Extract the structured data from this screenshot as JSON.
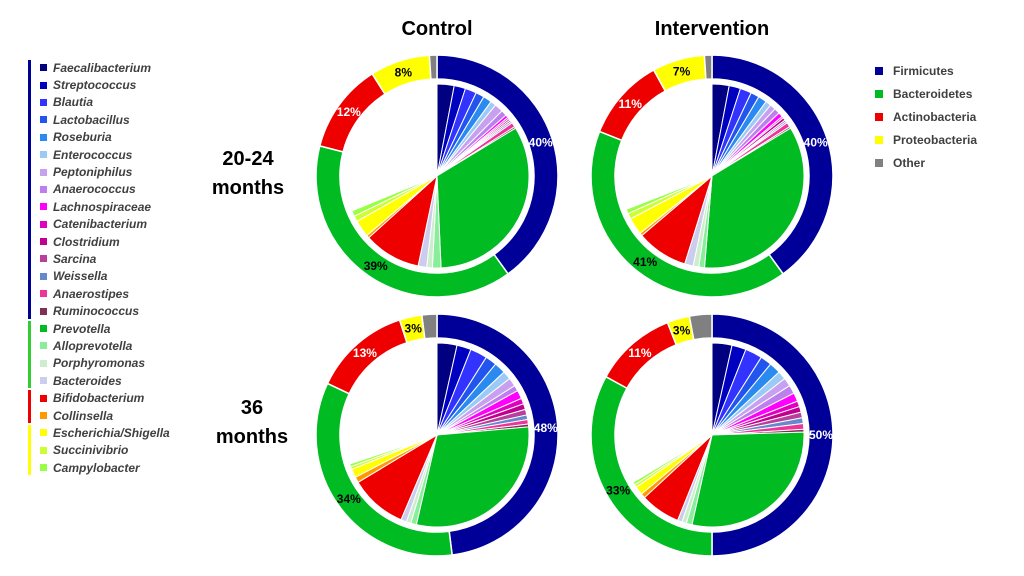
{
  "columns": [
    "Control",
    "Intervention"
  ],
  "rows": [
    {
      "line1": "20-24",
      "line2": "months"
    },
    {
      "line1": "36",
      "line2": "months"
    }
  ],
  "phylum_legend": [
    {
      "label": "Firmicutes",
      "color": "#000099"
    },
    {
      "label": "Bacteroidetes",
      "color": "#00bb22"
    },
    {
      "label": "Actinobacteria",
      "color": "#ee0000"
    },
    {
      "label": "Proteobacteria",
      "color": "#ffff00"
    },
    {
      "label": "Other",
      "color": "#808080"
    }
  ],
  "genus_legend": [
    {
      "phylum": "Firmicutes",
      "bar_color": "#000099",
      "items": [
        {
          "label": "Faecalibacterium",
          "color": "#000080"
        },
        {
          "label": "Streptococcus",
          "color": "#0000c0"
        },
        {
          "label": "Blautia",
          "color": "#3333ff"
        },
        {
          "label": "Lactobacillus",
          "color": "#2255ee"
        },
        {
          "label": "Roseburia",
          "color": "#2a8af0"
        },
        {
          "label": "Enterococcus",
          "color": "#9ccaf5"
        },
        {
          "label": "Peptoniphilus",
          "color": "#c8a0f0"
        },
        {
          "label": "Anaerococcus",
          "color": "#bb80ee"
        },
        {
          "label": "Lachnospiraceae",
          "color": "#ff00ff"
        },
        {
          "label": "Catenibacterium",
          "color": "#e000c0"
        },
        {
          "label": "Clostridium",
          "color": "#c00090"
        },
        {
          "label": "Sarcina",
          "color": "#b8409a"
        },
        {
          "label": "Weissella",
          "color": "#6688cc"
        },
        {
          "label": "Anaerostipes",
          "color": "#ee3399"
        },
        {
          "label": "Ruminococcus",
          "color": "#803050"
        }
      ]
    },
    {
      "phylum": "Bacteroidetes",
      "bar_color": "#33cc33",
      "items": [
        {
          "label": "Prevotella",
          "color": "#00bb22"
        },
        {
          "label": "Alloprevotella",
          "color": "#88ee99"
        },
        {
          "label": "Porphyromonas",
          "color": "#cceecc"
        },
        {
          "label": "Bacteroides",
          "color": "#ccccee"
        }
      ]
    },
    {
      "phylum": "Actinobacteria",
      "bar_color": "#ee0000",
      "items": [
        {
          "label": "Bifidobacterium",
          "color": "#ee0000"
        },
        {
          "label": "Collinsella",
          "color": "#ff9900"
        }
      ]
    },
    {
      "phylum": "Proteobacteria",
      "bar_color": "#ffff00",
      "items": [
        {
          "label": "Escherichia/Shigella",
          "color": "#ffff00"
        },
        {
          "label": "Succinivibrio",
          "color": "#ccff33"
        },
        {
          "label": "Campylobacter",
          "color": "#99ff44"
        }
      ]
    }
  ],
  "chart_data": [
    {
      "type": "pie",
      "column": "Control",
      "row": "20-24 months",
      "phyla": [
        {
          "name": "Firmicutes",
          "value": 40,
          "label": "40%"
        },
        {
          "name": "Bacteroidetes",
          "value": 39,
          "label": "39%"
        },
        {
          "name": "Actinobacteria",
          "value": 12,
          "label": "12%"
        },
        {
          "name": "Proteobacteria",
          "value": 8,
          "label": "8%"
        },
        {
          "name": "Other",
          "value": 1,
          "label": ""
        }
      ],
      "genera": [
        {
          "name": "Faecalibacterium",
          "value": 3.0
        },
        {
          "name": "Streptococcus",
          "value": 2.0
        },
        {
          "name": "Blautia",
          "value": 2.0
        },
        {
          "name": "Lactobacillus",
          "value": 1.5
        },
        {
          "name": "Roseburia",
          "value": 1.5
        },
        {
          "name": "Enterococcus",
          "value": 1.0
        },
        {
          "name": "Peptoniphilus",
          "value": 1.5
        },
        {
          "name": "Anaerococcus",
          "value": 1.0
        },
        {
          "name": "Lachnospiraceae",
          "value": 0.5
        },
        {
          "name": "Catenibacterium",
          "value": 0.3
        },
        {
          "name": "Clostridium",
          "value": 0.3
        },
        {
          "name": "Sarcina",
          "value": 0.3
        },
        {
          "name": "Weissella",
          "value": 0.3
        },
        {
          "name": "Anaerostipes",
          "value": 0.8
        },
        {
          "name": "Ruminococcus",
          "value": 0.3
        },
        {
          "name": "Prevotella",
          "value": 33.0
        },
        {
          "name": "Alloprevotella",
          "value": 1.5
        },
        {
          "name": "Porphyromonas",
          "value": 1.0
        },
        {
          "name": "Bacteroides",
          "value": 1.5
        },
        {
          "name": "Bifidobacterium",
          "value": 10.0
        },
        {
          "name": "Collinsella",
          "value": 0.5
        },
        {
          "name": "Escherichia/Shigella",
          "value": 3.0
        },
        {
          "name": "Succinivibrio",
          "value": 1.0
        },
        {
          "name": "Campylobacter",
          "value": 1.0
        }
      ]
    },
    {
      "type": "pie",
      "column": "Intervention",
      "row": "20-24 months",
      "phyla": [
        {
          "name": "Firmicutes",
          "value": 40,
          "label": "40%"
        },
        {
          "name": "Bacteroidetes",
          "value": 41,
          "label": "41%"
        },
        {
          "name": "Actinobacteria",
          "value": 11,
          "label": "11%"
        },
        {
          "name": "Proteobacteria",
          "value": 7,
          "label": "7%"
        },
        {
          "name": "Other",
          "value": 1,
          "label": ""
        }
      ],
      "genera": [
        {
          "name": "Faecalibacterium",
          "value": 3.0
        },
        {
          "name": "Streptococcus",
          "value": 2.0
        },
        {
          "name": "Blautia",
          "value": 2.0
        },
        {
          "name": "Lactobacillus",
          "value": 1.5
        },
        {
          "name": "Roseburia",
          "value": 1.5
        },
        {
          "name": "Enterococcus",
          "value": 1.0
        },
        {
          "name": "Peptoniphilus",
          "value": 1.0
        },
        {
          "name": "Anaerococcus",
          "value": 1.0
        },
        {
          "name": "Lachnospiraceae",
          "value": 0.8
        },
        {
          "name": "Catenibacterium",
          "value": 0.3
        },
        {
          "name": "Clostridium",
          "value": 0.5
        },
        {
          "name": "Sarcina",
          "value": 0.3
        },
        {
          "name": "Weissella",
          "value": 0.3
        },
        {
          "name": "Anaerostipes",
          "value": 0.8
        },
        {
          "name": "Ruminococcus",
          "value": 0.3
        },
        {
          "name": "Prevotella",
          "value": 35.0
        },
        {
          "name": "Alloprevotella",
          "value": 1.0
        },
        {
          "name": "Porphyromonas",
          "value": 1.0
        },
        {
          "name": "Bacteroides",
          "value": 1.5
        },
        {
          "name": "Bifidobacterium",
          "value": 9.0
        },
        {
          "name": "Collinsella",
          "value": 0.5
        },
        {
          "name": "Escherichia/Shigella",
          "value": 3.0
        },
        {
          "name": "Succinivibrio",
          "value": 1.0
        },
        {
          "name": "Campylobacter",
          "value": 0.8
        }
      ]
    },
    {
      "type": "pie",
      "column": "Control",
      "row": "36 months",
      "phyla": [
        {
          "name": "Firmicutes",
          "value": 48,
          "label": "48%"
        },
        {
          "name": "Bacteroidetes",
          "value": 34,
          "label": "34%"
        },
        {
          "name": "Actinobacteria",
          "value": 13,
          "label": "13%"
        },
        {
          "name": "Proteobacteria",
          "value": 3,
          "label": "3%"
        },
        {
          "name": "Other",
          "value": 2,
          "label": ""
        }
      ],
      "genera": [
        {
          "name": "Faecalibacterium",
          "value": 3.5
        },
        {
          "name": "Streptococcus",
          "value": 2.5
        },
        {
          "name": "Blautia",
          "value": 3.0
        },
        {
          "name": "Lactobacillus",
          "value": 2.0
        },
        {
          "name": "Roseburia",
          "value": 2.0
        },
        {
          "name": "Enterococcus",
          "value": 1.5
        },
        {
          "name": "Peptoniphilus",
          "value": 1.5
        },
        {
          "name": "Anaerococcus",
          "value": 1.0
        },
        {
          "name": "Lachnospiraceae",
          "value": 1.5
        },
        {
          "name": "Catenibacterium",
          "value": 1.0
        },
        {
          "name": "Clostridium",
          "value": 1.0
        },
        {
          "name": "Sarcina",
          "value": 1.0
        },
        {
          "name": "Weissella",
          "value": 0.8
        },
        {
          "name": "Anaerostipes",
          "value": 0.8
        },
        {
          "name": "Ruminococcus",
          "value": 0.5
        },
        {
          "name": "Prevotella",
          "value": 30.0
        },
        {
          "name": "Alloprevotella",
          "value": 1.0
        },
        {
          "name": "Porphyromonas",
          "value": 0.8
        },
        {
          "name": "Bacteroides",
          "value": 1.0
        },
        {
          "name": "Bifidobacterium",
          "value": 10.0
        },
        {
          "name": "Collinsella",
          "value": 1.0
        },
        {
          "name": "Escherichia/Shigella",
          "value": 1.5
        },
        {
          "name": "Succinivibrio",
          "value": 0.5
        },
        {
          "name": "Campylobacter",
          "value": 0.5
        }
      ]
    },
    {
      "type": "pie",
      "column": "Intervention",
      "row": "36 months",
      "phyla": [
        {
          "name": "Firmicutes",
          "value": 50,
          "label": "50%"
        },
        {
          "name": "Bacteroidetes",
          "value": 33,
          "label": "33%"
        },
        {
          "name": "Actinobacteria",
          "value": 11,
          "label": "11%"
        },
        {
          "name": "Proteobacteria",
          "value": 3,
          "label": "3%"
        },
        {
          "name": "Other",
          "value": 3,
          "label": ""
        }
      ],
      "genera": [
        {
          "name": "Faecalibacterium",
          "value": 3.5
        },
        {
          "name": "Streptococcus",
          "value": 2.5
        },
        {
          "name": "Blautia",
          "value": 3.0
        },
        {
          "name": "Lactobacillus",
          "value": 2.0
        },
        {
          "name": "Roseburia",
          "value": 2.0
        },
        {
          "name": "Enterococcus",
          "value": 1.5
        },
        {
          "name": "Peptoniphilus",
          "value": 1.5
        },
        {
          "name": "Anaerococcus",
          "value": 1.5
        },
        {
          "name": "Lachnospiraceae",
          "value": 1.5
        },
        {
          "name": "Catenibacterium",
          "value": 1.0
        },
        {
          "name": "Clostridium",
          "value": 1.0
        },
        {
          "name": "Sarcina",
          "value": 1.0
        },
        {
          "name": "Weissella",
          "value": 1.0
        },
        {
          "name": "Anaerostipes",
          "value": 1.0
        },
        {
          "name": "Ruminococcus",
          "value": 0.5
        },
        {
          "name": "Prevotella",
          "value": 29.0
        },
        {
          "name": "Alloprevotella",
          "value": 1.0
        },
        {
          "name": "Porphyromonas",
          "value": 0.8
        },
        {
          "name": "Bacteroides",
          "value": 0.8
        },
        {
          "name": "Bifidobacterium",
          "value": 7.0
        },
        {
          "name": "Collinsella",
          "value": 0.8
        },
        {
          "name": "Escherichia/Shigella",
          "value": 1.5
        },
        {
          "name": "Succinivibrio",
          "value": 0.5
        },
        {
          "name": "Campylobacter",
          "value": 0.5
        }
      ]
    }
  ]
}
